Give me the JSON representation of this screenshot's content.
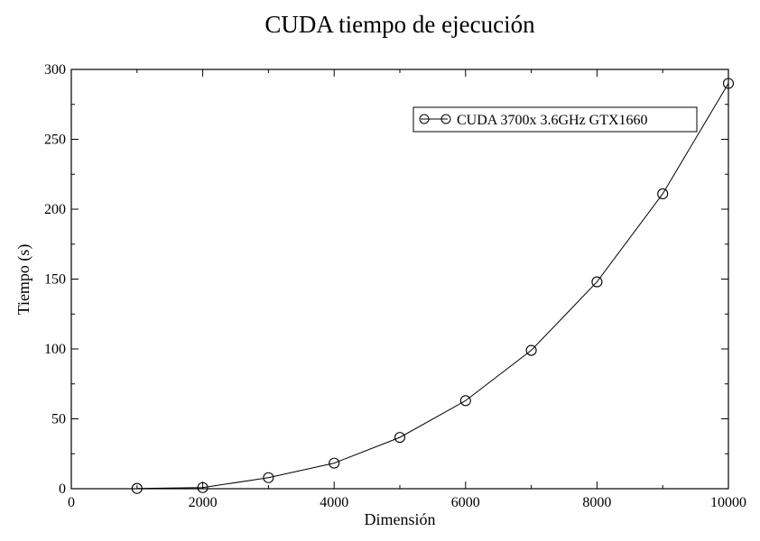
{
  "chart_data": {
    "type": "line",
    "title": "CUDA tiempo de ejecución",
    "xlabel": "Dimensión",
    "ylabel": "Tiempo (s)",
    "xlim": [
      0,
      10000
    ],
    "ylim": [
      0,
      300
    ],
    "xticks": [
      0,
      2000,
      4000,
      6000,
      8000,
      10000
    ],
    "yticks": [
      0,
      50,
      100,
      150,
      200,
      250,
      300
    ],
    "x_minor_step": 1000,
    "y_minor_step": 25,
    "grid": false,
    "legend_position": "top-right",
    "marker": "circle",
    "series": [
      {
        "name": "CUDA 3700x 3.6GHz GTX1660",
        "color": "#000000",
        "x": [
          1000,
          2000,
          3000,
          4000,
          5000,
          6000,
          7000,
          8000,
          9000,
          10000
        ],
        "y": [
          0.2,
          0.8,
          7.9,
          18.3,
          36.7,
          63,
          99,
          148,
          211,
          290
        ]
      }
    ]
  }
}
